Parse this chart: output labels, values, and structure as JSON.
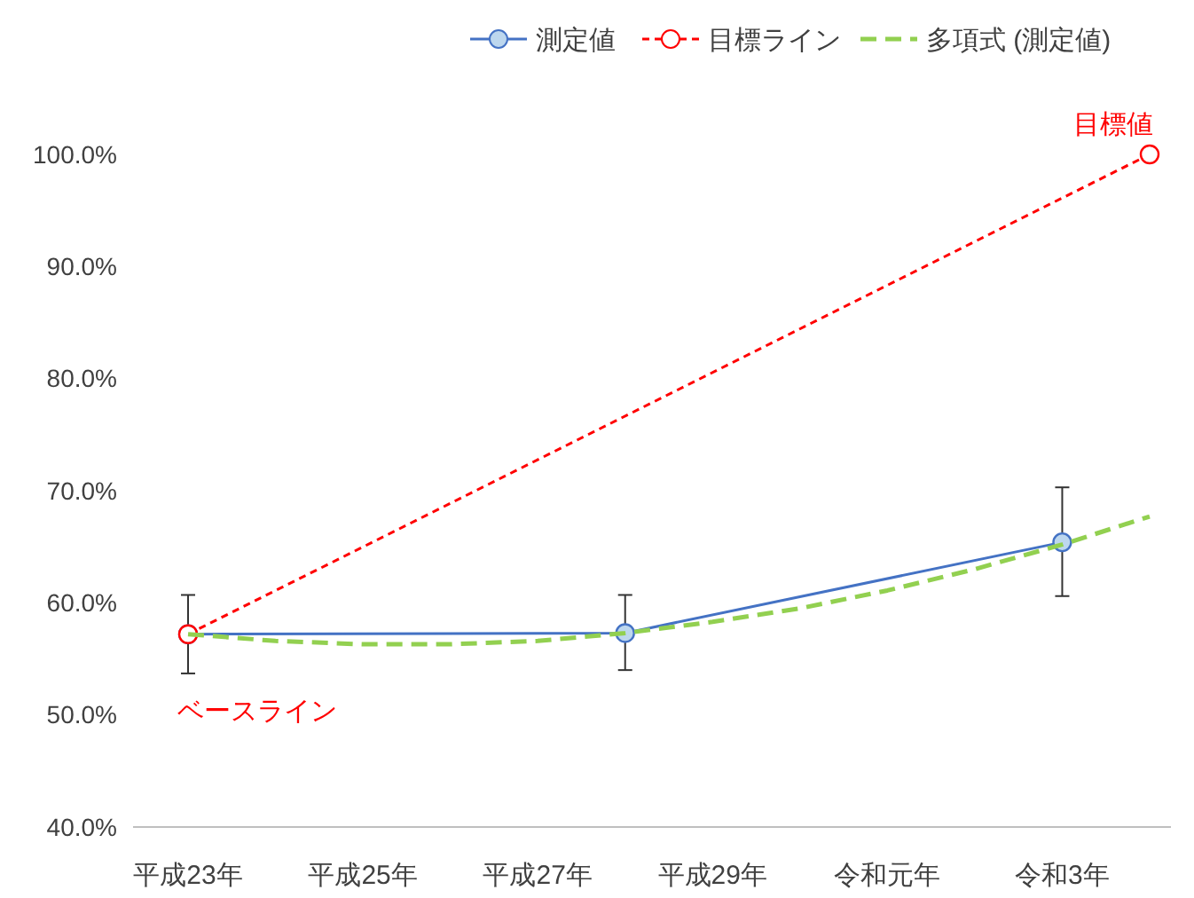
{
  "chart_data": {
    "type": "line",
    "categories": [
      "平成23年",
      null,
      "平成25年",
      null,
      "平成27年",
      null,
      "平成29年",
      null,
      "令和元年",
      null,
      "令和3年",
      null
    ],
    "series": [
      {
        "name": "測定値",
        "color": "#4472c4",
        "values": [
          57.2,
          null,
          null,
          null,
          null,
          57.3,
          null,
          null,
          null,
          null,
          65.4,
          null
        ],
        "errors": [
          [
            53.7,
            60.7
          ],
          null,
          null,
          null,
          null,
          [
            54.0,
            60.7
          ],
          null,
          null,
          null,
          null,
          [
            60.6,
            70.3
          ],
          null
        ],
        "marker": "circle",
        "line_style": "solid"
      },
      {
        "name": "目標ライン",
        "color": "#ff0000",
        "values": [
          57.2,
          null,
          null,
          null,
          null,
          null,
          null,
          null,
          null,
          null,
          null,
          100
        ],
        "marker": "circle",
        "line_style": "dotted"
      },
      {
        "name": "多項式 (測定値)",
        "color": "#92d050",
        "values": [
          57.2,
          56.6,
          56.3,
          56.3,
          56.6,
          57.3,
          58.3,
          59.5,
          61.1,
          63.0,
          65.2,
          67.7
        ],
        "marker": "none",
        "line_style": "dashed"
      }
    ],
    "ylim": [
      40,
      100
    ],
    "yticks": [
      {
        "value": 40,
        "label": "40.0%"
      },
      {
        "value": 50,
        "label": "50.0%"
      },
      {
        "value": 60,
        "label": "60.0%"
      },
      {
        "value": 70,
        "label": "70.0%"
      },
      {
        "value": 80,
        "label": "80.0%"
      },
      {
        "value": 90,
        "label": "90.0%"
      },
      {
        "value": 100,
        "label": "100.0%"
      }
    ],
    "annotations": [
      "目標値",
      {
        "text": "ベースライン",
        "x": "平成23年",
        "y": 57.2
      }
    ],
    "grid": false,
    "legend": "top right"
  }
}
